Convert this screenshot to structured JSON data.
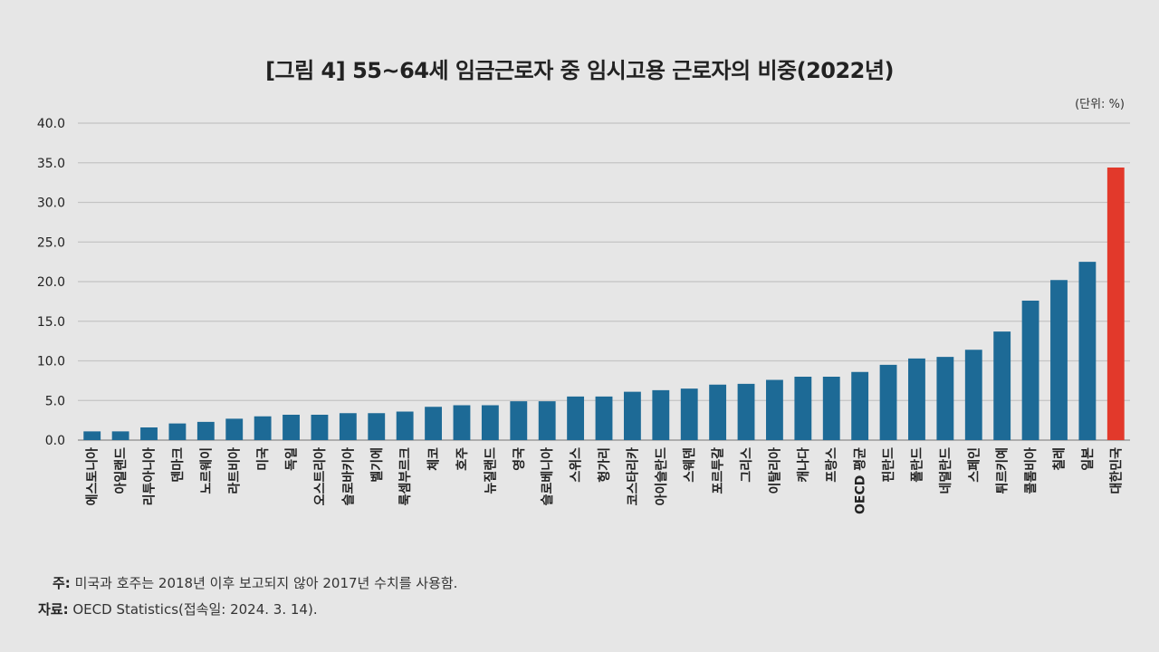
{
  "title": "[그림 4] 55~64세 임금근로자 중 임시고용 근로자의 비중(2022년)",
  "unit": "(단위: %)",
  "notes": {
    "note_label": "주:",
    "note_text": " 미국과 호주는 2018년 이후 보고되지 않아 2017년 수치를 사용함.",
    "source_label": "자료:",
    "source_text": " OECD Statistics(접속일: 2024. 3. 14)."
  },
  "colors": {
    "bar": "#1d6a96",
    "highlight": "#e2392b",
    "grid": "#c4c4c4",
    "text": "#222222"
  },
  "chart_data": {
    "type": "bar",
    "categories": [
      "에스토니아",
      "아일랜드",
      "리투아니아",
      "덴마크",
      "노르웨이",
      "라트비아",
      "미국",
      "독일",
      "오스트리아",
      "슬로바키아",
      "벨기에",
      "룩셈부르크",
      "체코",
      "호주",
      "뉴질랜드",
      "영국",
      "슬로베니아",
      "스위스",
      "헝가리",
      "코스타리카",
      "아이슬란드",
      "스웨덴",
      "포르투갈",
      "그리스",
      "이탈리아",
      "캐나다",
      "프랑스",
      "OECD 평균",
      "핀란드",
      "폴란드",
      "네덜란드",
      "스페인",
      "튀르키예",
      "콜롬비아",
      "칠레",
      "일본",
      "대한민국"
    ],
    "values": [
      1.1,
      1.1,
      1.6,
      2.1,
      2.3,
      2.7,
      3.0,
      3.2,
      3.2,
      3.4,
      3.4,
      3.6,
      4.2,
      4.4,
      4.4,
      4.9,
      4.9,
      5.5,
      5.5,
      6.1,
      6.3,
      6.5,
      7.0,
      7.1,
      7.6,
      8.0,
      8.0,
      8.6,
      9.5,
      10.3,
      10.5,
      11.4,
      13.7,
      17.6,
      20.2,
      22.5,
      34.4
    ],
    "highlight_index": 36,
    "yticks": [
      "0.0",
      "5.0",
      "10.0",
      "15.0",
      "20.0",
      "25.0",
      "30.0",
      "35.0",
      "40.0"
    ],
    "ylim": [
      0,
      40
    ],
    "grid": true
  }
}
